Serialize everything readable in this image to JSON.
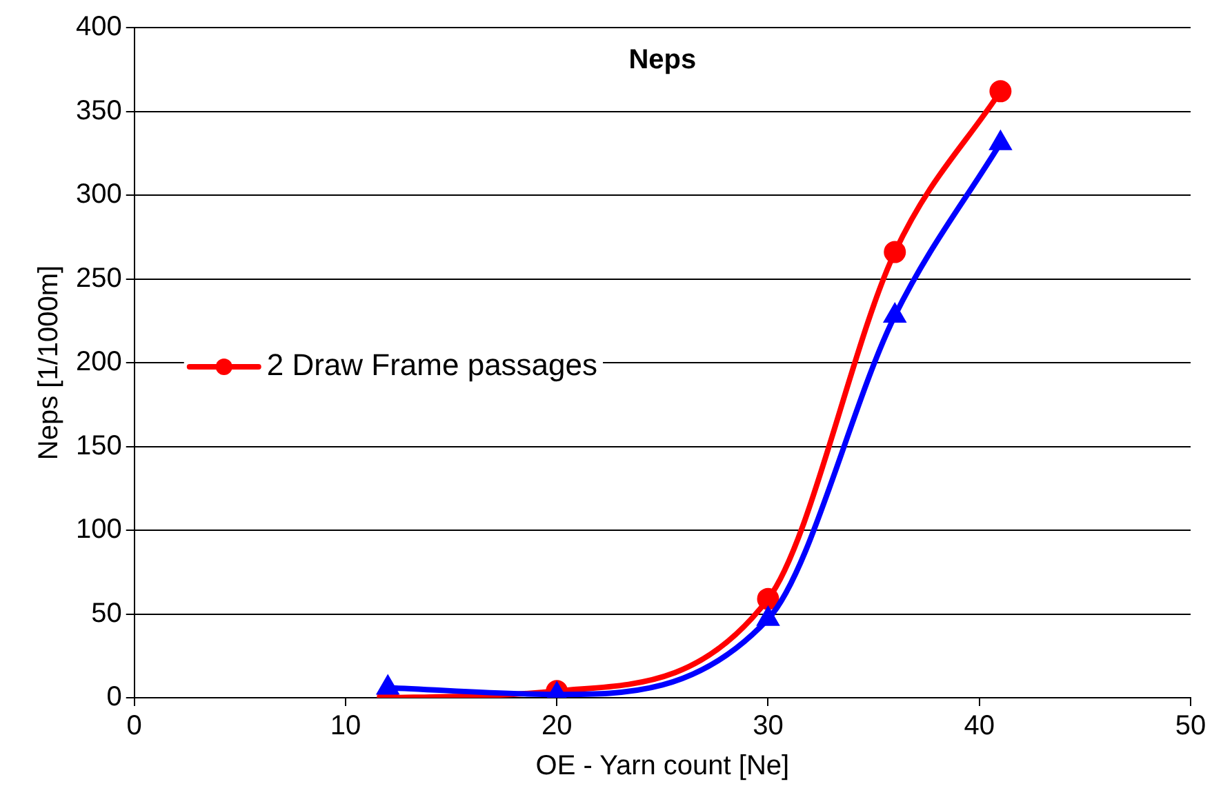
{
  "chart_data": {
    "type": "line",
    "title": "Neps",
    "xlabel": "OE - Yarn count [Ne]",
    "ylabel": "Neps [1/1000m]",
    "x": [
      12,
      20,
      30,
      36,
      41
    ],
    "series": [
      {
        "color": "#0000ff",
        "marker": "triangle",
        "values": [
          6,
          2,
          47,
          228,
          331
        ]
      },
      {
        "name": "2 Draw Frame passages",
        "color": "#ff0000",
        "marker": "circle",
        "values": [
          0,
          4,
          59,
          266,
          362
        ]
      }
    ],
    "xlim": [
      0,
      50
    ],
    "xticks": [
      0,
      10,
      20,
      30,
      40,
      50
    ],
    "ylim": [
      0,
      400
    ],
    "yticks": [
      0,
      50,
      100,
      150,
      200,
      250,
      300,
      350,
      400
    ],
    "grid": "y",
    "legend": "left"
  }
}
